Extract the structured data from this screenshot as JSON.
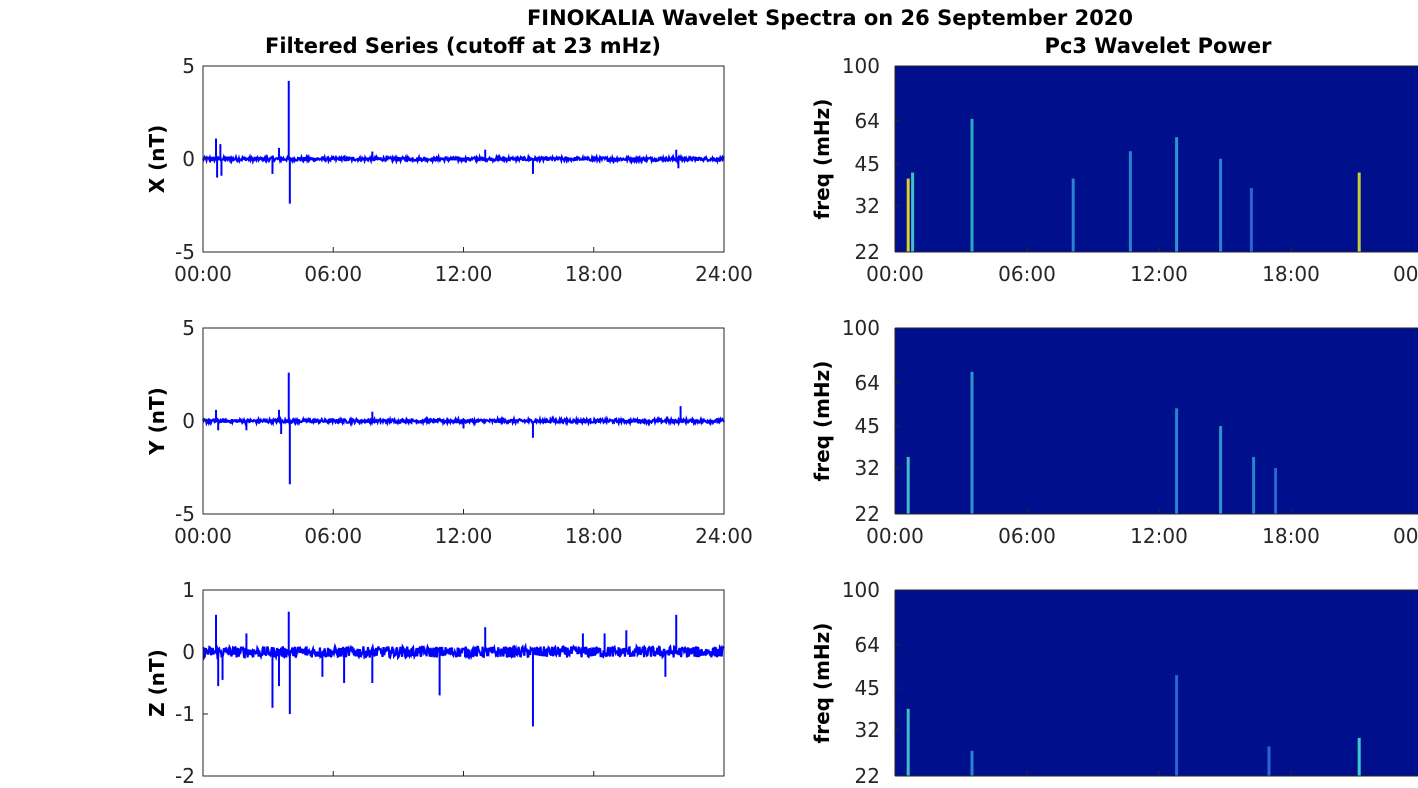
{
  "figure": {
    "title": "FINOKALIA Wavelet Spectra on 26 September 2020",
    "left_title": "Filtered Series (cutoff at 23 mHz)",
    "right_title": "Pc3 Wavelet Power"
  },
  "chart_data": [
    {
      "type": "line",
      "name": "X filtered series",
      "ylabel": "X (nT)",
      "ylim": [
        -5,
        5
      ],
      "yticks": [
        "-5",
        "0",
        "5"
      ],
      "xticks": [
        "00:00",
        "06:00",
        "12:00",
        "18:00",
        "24:00"
      ],
      "xlim_hours": [
        0,
        24
      ],
      "line_color": "#0000ff",
      "noise_amplitude": 0.1,
      "spikes": [
        {
          "t": 0.6,
          "v": 1.1
        },
        {
          "t": 0.65,
          "v": -1.0
        },
        {
          "t": 0.8,
          "v": 0.8
        },
        {
          "t": 0.85,
          "v": -0.9
        },
        {
          "t": 3.2,
          "v": -0.8
        },
        {
          "t": 3.5,
          "v": 0.6
        },
        {
          "t": 3.95,
          "v": 4.2
        },
        {
          "t": 4.0,
          "v": -2.4
        },
        {
          "t": 7.8,
          "v": 0.4
        },
        {
          "t": 13.0,
          "v": 0.5
        },
        {
          "t": 15.2,
          "v": -0.8
        },
        {
          "t": 21.8,
          "v": 0.5
        },
        {
          "t": 21.9,
          "v": -0.5
        }
      ]
    },
    {
      "type": "line",
      "name": "Y filtered series",
      "ylabel": "Y (nT)",
      "ylim": [
        -5,
        5
      ],
      "yticks": [
        "-5",
        "0",
        "5"
      ],
      "xticks": [
        "00:00",
        "06:00",
        "12:00",
        "18:00",
        "24:00"
      ],
      "xlim_hours": [
        0,
        24
      ],
      "line_color": "#0000ff",
      "noise_amplitude": 0.1,
      "spikes": [
        {
          "t": 0.6,
          "v": 0.6
        },
        {
          "t": 0.7,
          "v": -0.5
        },
        {
          "t": 2.0,
          "v": -0.5
        },
        {
          "t": 3.5,
          "v": 0.6
        },
        {
          "t": 3.6,
          "v": -0.7
        },
        {
          "t": 3.95,
          "v": 2.6
        },
        {
          "t": 4.0,
          "v": -3.4
        },
        {
          "t": 7.8,
          "v": 0.5
        },
        {
          "t": 12.0,
          "v": -0.4
        },
        {
          "t": 15.2,
          "v": -0.9
        },
        {
          "t": 22.0,
          "v": 0.8
        }
      ]
    },
    {
      "type": "line",
      "name": "Z filtered series",
      "ylabel": "Z (nT)",
      "ylim": [
        -2,
        1
      ],
      "yticks": [
        "-2",
        "-1",
        "0",
        "1"
      ],
      "xticks": [],
      "xlim_hours": [
        0,
        24
      ],
      "line_color": "#0000ff",
      "noise_amplitude": 0.09,
      "spikes": [
        {
          "t": 0.6,
          "v": 0.6
        },
        {
          "t": 0.7,
          "v": -0.55
        },
        {
          "t": 0.9,
          "v": -0.45
        },
        {
          "t": 2.0,
          "v": 0.3
        },
        {
          "t": 3.2,
          "v": -0.9
        },
        {
          "t": 3.5,
          "v": -0.55
        },
        {
          "t": 3.95,
          "v": 0.65
        },
        {
          "t": 4.0,
          "v": -1.0
        },
        {
          "t": 5.5,
          "v": -0.4
        },
        {
          "t": 6.5,
          "v": -0.5
        },
        {
          "t": 7.8,
          "v": -0.5
        },
        {
          "t": 10.9,
          "v": -0.7
        },
        {
          "t": 13.0,
          "v": 0.4
        },
        {
          "t": 15.2,
          "v": -1.2
        },
        {
          "t": 17.5,
          "v": 0.3
        },
        {
          "t": 18.5,
          "v": 0.3
        },
        {
          "t": 19.5,
          "v": 0.35
        },
        {
          "t": 21.3,
          "v": -0.4
        },
        {
          "t": 21.8,
          "v": 0.6
        }
      ]
    },
    {
      "type": "heatmap",
      "name": "X wavelet power",
      "ylabel": "freq (mHz)",
      "yticks": [
        "100",
        "64",
        "45",
        "32",
        "22"
      ],
      "xticks": [
        "00:00",
        "06:00",
        "12:00",
        "18:00",
        "00"
      ],
      "ylim_mHz": [
        22,
        100
      ],
      "ylog": true,
      "background_color": "#00108c",
      "streaks": [
        {
          "t": 0.6,
          "f_max": 40,
          "color": "#f2e41a"
        },
        {
          "t": 0.8,
          "f_max": 42,
          "color": "#47d0cf"
        },
        {
          "t": 3.5,
          "f_max": 65,
          "color": "#2fb8c6"
        },
        {
          "t": 8.1,
          "f_max": 40,
          "color": "#2f8fd8"
        },
        {
          "t": 10.7,
          "f_max": 50,
          "color": "#2f8fd8"
        },
        {
          "t": 12.8,
          "f_max": 56,
          "color": "#35a4d6"
        },
        {
          "t": 14.8,
          "f_max": 47,
          "color": "#2f8fd8"
        },
        {
          "t": 16.2,
          "f_max": 37,
          "color": "#2f6ee0"
        },
        {
          "t": 21.1,
          "f_max": 42,
          "color": "#d9e32b"
        }
      ]
    },
    {
      "type": "heatmap",
      "name": "Y wavelet power",
      "ylabel": "freq (mHz)",
      "yticks": [
        "100",
        "64",
        "45",
        "32",
        "22"
      ],
      "xticks": [
        "00:00",
        "06:00",
        "12:00",
        "18:00",
        "00"
      ],
      "ylim_mHz": [
        22,
        100
      ],
      "ylog": true,
      "background_color": "#00108c",
      "streaks": [
        {
          "t": 0.6,
          "f_max": 35,
          "color": "#47d0cf"
        },
        {
          "t": 3.5,
          "f_max": 70,
          "color": "#35a4d6"
        },
        {
          "t": 12.8,
          "f_max": 52,
          "color": "#2f8fd8"
        },
        {
          "t": 14.8,
          "f_max": 45,
          "color": "#35a4d6"
        },
        {
          "t": 16.3,
          "f_max": 35,
          "color": "#2f8fd8"
        },
        {
          "t": 17.3,
          "f_max": 32,
          "color": "#2f6ee0"
        }
      ]
    },
    {
      "type": "heatmap",
      "name": "Z wavelet power",
      "ylabel": "freq (mHz)",
      "yticks": [
        "100",
        "64",
        "45",
        "32",
        "22"
      ],
      "xticks": [],
      "ylim_mHz": [
        22,
        100
      ],
      "ylog": true,
      "background_color": "#00108c",
      "streaks": [
        {
          "t": 0.6,
          "f_max": 38,
          "color": "#47d0cf"
        },
        {
          "t": 3.5,
          "f_max": 27,
          "color": "#2f8fd8"
        },
        {
          "t": 12.8,
          "f_max": 50,
          "color": "#2f6ee0"
        },
        {
          "t": 17.0,
          "f_max": 28,
          "color": "#2f6ee0"
        },
        {
          "t": 21.1,
          "f_max": 30,
          "color": "#47e0cf"
        }
      ]
    }
  ]
}
